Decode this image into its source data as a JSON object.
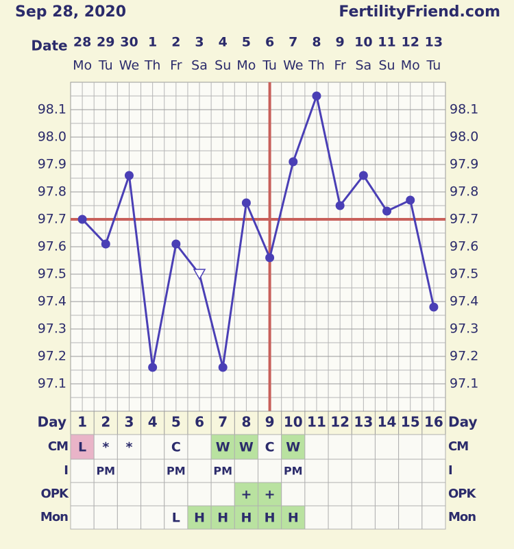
{
  "chart_data": {
    "type": "line",
    "date": "Sep 28, 2020",
    "site": "FertilityFriend.com",
    "date_label": "Date",
    "categories": [
      "28",
      "29",
      "30",
      "1",
      "2",
      "3",
      "4",
      "5",
      "6",
      "7",
      "8",
      "9",
      "10",
      "11",
      "12",
      "13"
    ],
    "weekdays": [
      "Mo",
      "Tu",
      "We",
      "Th",
      "Fr",
      "Sa",
      "Su",
      "Mo",
      "Tu",
      "We",
      "Th",
      "Fr",
      "Sa",
      "Su",
      "Mo",
      "Tu"
    ],
    "series": [
      {
        "name": "Temperature",
        "color": "#4a3fb5",
        "values": [
          97.7,
          97.61,
          97.86,
          97.16,
          97.61,
          97.5,
          97.16,
          97.76,
          97.56,
          97.91,
          98.15,
          97.75,
          97.86,
          97.73,
          97.77,
          97.38
        ],
        "hollow": [
          5
        ]
      }
    ],
    "ylim": [
      97.0,
      98.2
    ],
    "yticks": [
      97.1,
      97.2,
      97.3,
      97.4,
      97.5,
      97.6,
      97.7,
      97.8,
      97.9,
      {
        "value": 98.0,
        "label": "98.0"
      },
      98.1
    ],
    "coverline": 97.7,
    "ovulation_day": 9,
    "marker_color": "#c8605a",
    "table": {
      "day_label": "Day",
      "days": [
        1,
        2,
        3,
        4,
        5,
        6,
        7,
        8,
        9,
        10,
        11,
        12,
        13,
        14,
        15,
        16
      ],
      "rows": [
        {
          "label": "CM",
          "cells": [
            "L",
            "*",
            "*",
            null,
            "C",
            null,
            "W",
            "W",
            "C",
            "W",
            null,
            null,
            null,
            null,
            null,
            null
          ],
          "colors": [
            "#e9b4c8",
            null,
            null,
            null,
            null,
            null,
            "#b9e2a0",
            "#b9e2a0",
            null,
            "#b9e2a0",
            null,
            null,
            null,
            null,
            null,
            null
          ]
        },
        {
          "label": "I",
          "cells": [
            null,
            "PM",
            null,
            null,
            "PM",
            null,
            "PM",
            null,
            null,
            "PM",
            null,
            null,
            null,
            null,
            null,
            null
          ],
          "colors": [
            null,
            null,
            null,
            null,
            null,
            null,
            null,
            null,
            null,
            null,
            null,
            null,
            null,
            null,
            null,
            null
          ]
        },
        {
          "label": "OPK",
          "cells": [
            null,
            null,
            null,
            null,
            null,
            null,
            null,
            "+",
            "+",
            null,
            null,
            null,
            null,
            null,
            null,
            null
          ],
          "colors": [
            null,
            null,
            null,
            null,
            null,
            null,
            null,
            "#b9e2a0",
            "#b9e2a0",
            null,
            null,
            null,
            null,
            null,
            null,
            null
          ]
        },
        {
          "label": "Mon",
          "cells": [
            null,
            null,
            null,
            null,
            "L",
            "H",
            "H",
            "H",
            "H",
            "H",
            null,
            null,
            null,
            null,
            null,
            null
          ],
          "colors": [
            null,
            null,
            null,
            null,
            null,
            "#b9e2a0",
            "#b9e2a0",
            "#b9e2a0",
            "#b9e2a0",
            "#b9e2a0",
            null,
            null,
            null,
            null,
            null,
            null
          ]
        }
      ]
    }
  }
}
